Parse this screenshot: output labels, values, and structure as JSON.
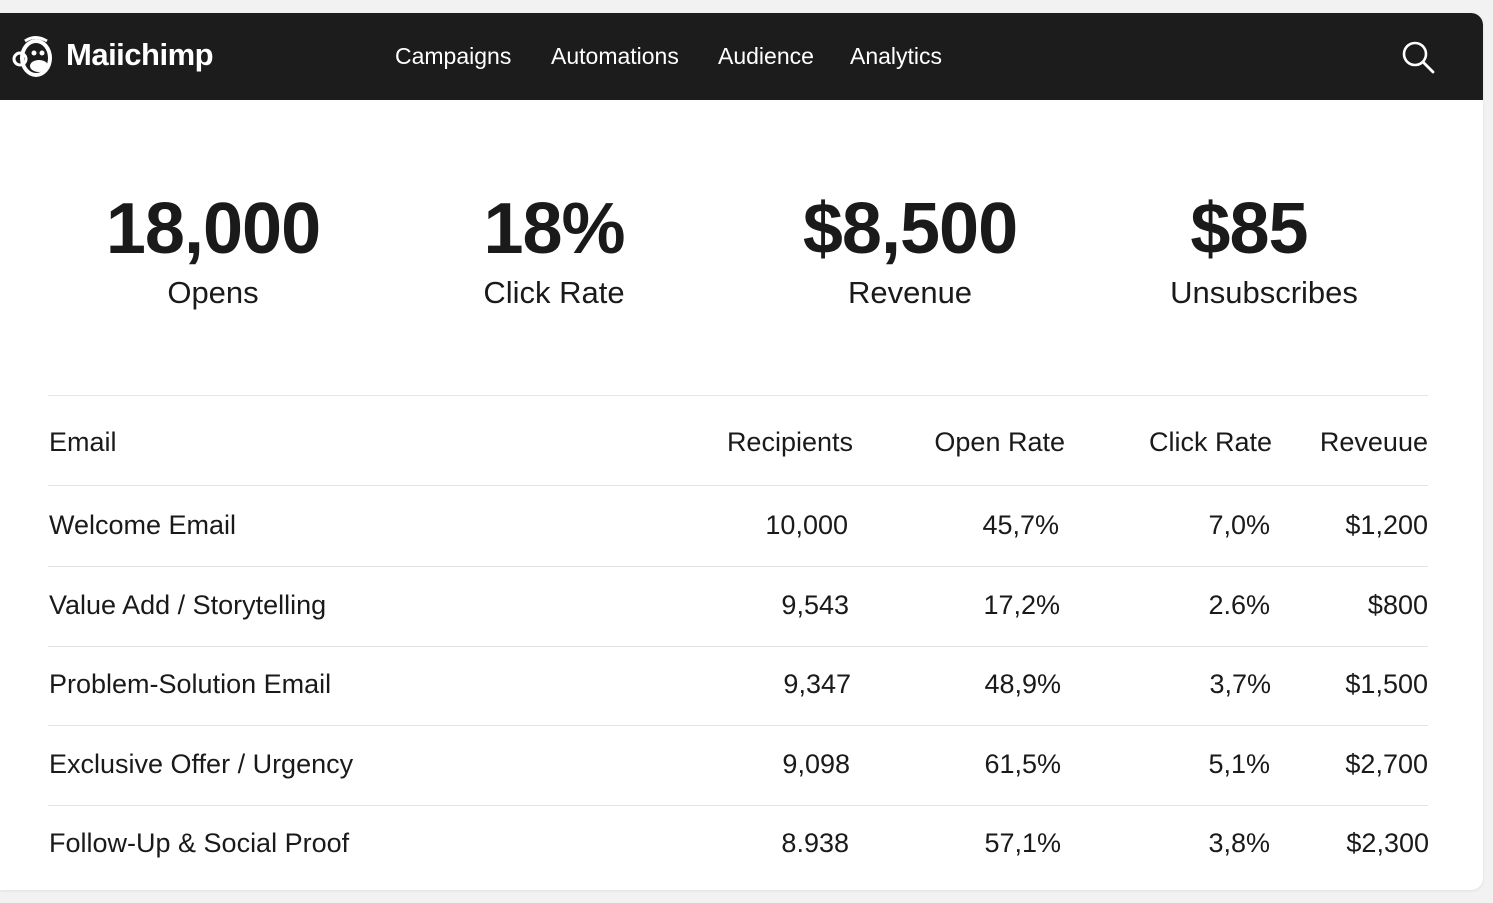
{
  "brand": {
    "name": "Maiichimp"
  },
  "nav": {
    "items": [
      "Campaigns",
      "Automations",
      "Audience",
      "Analytics"
    ]
  },
  "metrics": [
    {
      "value": "18,000",
      "label": "Opens"
    },
    {
      "value": "18%",
      "label": "Click Rate"
    },
    {
      "value": "$8,500",
      "label": "Revenue"
    },
    {
      "value": "$85",
      "label": "Unsubscribes"
    }
  ],
  "table": {
    "headers": [
      "Email",
      "Recipients",
      "Open Rate",
      "Click Rate",
      "Reveuue"
    ],
    "rows": [
      [
        "Welcome Email",
        "10,000",
        "45,7%",
        "7,0%",
        "$1,200"
      ],
      [
        "Value Add / Storytelling",
        "9,543",
        "17,2%",
        "2.6%",
        "$800"
      ],
      [
        "Problem-Solution Email",
        "9,347",
        "48,9%",
        "3,7%",
        "$1,500"
      ],
      [
        "Exclusive Offer / Urgency",
        "9,098",
        "61,5%",
        "5,1%",
        "$2,700"
      ],
      [
        "Follow-Up & Social Proof",
        "8.938",
        "57,1%",
        "3,8%",
        "$2,300"
      ]
    ]
  },
  "colors": {
    "topbar": "#1c1c1c",
    "text": "#1a1a1a"
  },
  "icons": {
    "logo": "chimp-logo-icon",
    "search": "search-icon"
  }
}
